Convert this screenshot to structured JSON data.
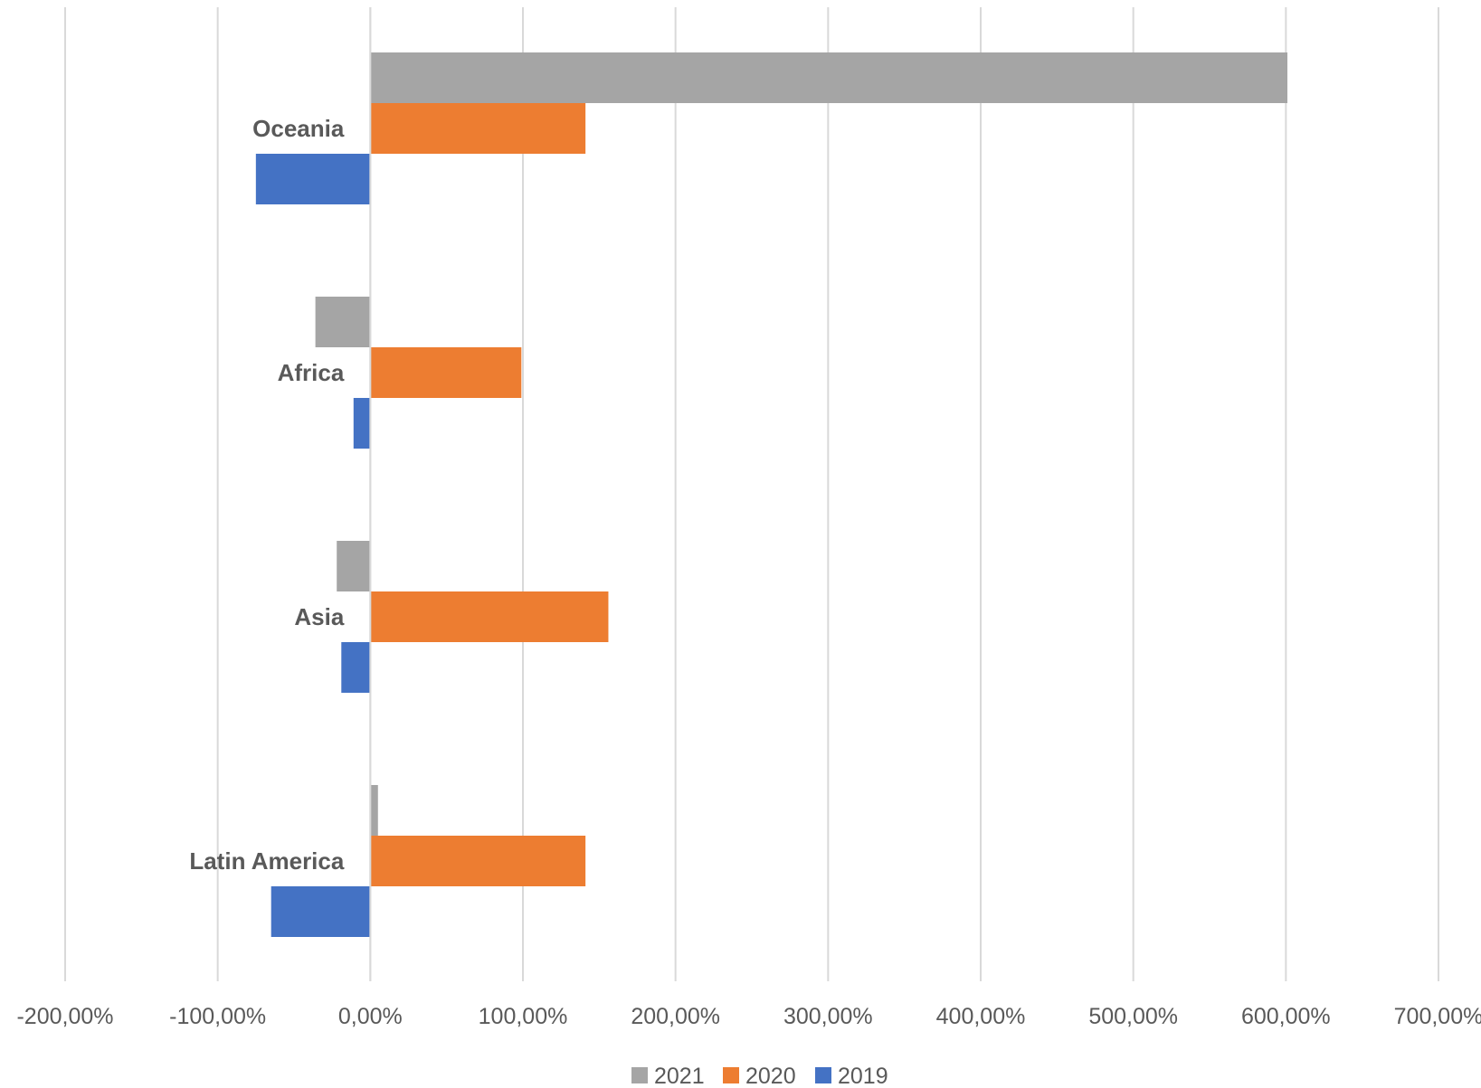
{
  "chart_data": {
    "type": "bar",
    "orientation": "horizontal",
    "categories": [
      "Oceania",
      "Africa",
      "Asia",
      "Latin America"
    ],
    "series": [
      {
        "name": "2021",
        "color": "#a5a5a5",
        "values": [
          601,
          -36,
          -22,
          5
        ]
      },
      {
        "name": "2020",
        "color": "#ed7d31",
        "values": [
          141,
          99,
          156,
          141
        ]
      },
      {
        "name": "2019",
        "color": "#4472c4",
        "values": [
          -75,
          -11,
          -19,
          -65
        ]
      }
    ],
    "xlim": [
      -200,
      700
    ],
    "x_ticks": [
      -200,
      -100,
      0,
      100,
      200,
      300,
      400,
      500,
      600,
      700
    ],
    "x_tick_labels": [
      "-200,00%",
      "-100,00%",
      "0,00%",
      "100,00%",
      "200,00%",
      "300,00%",
      "400,00%",
      "500,00%",
      "600,00%",
      "700,00%"
    ],
    "grid": true,
    "legend_position": "bottom",
    "title": "",
    "xlabel": "",
    "ylabel": ""
  }
}
